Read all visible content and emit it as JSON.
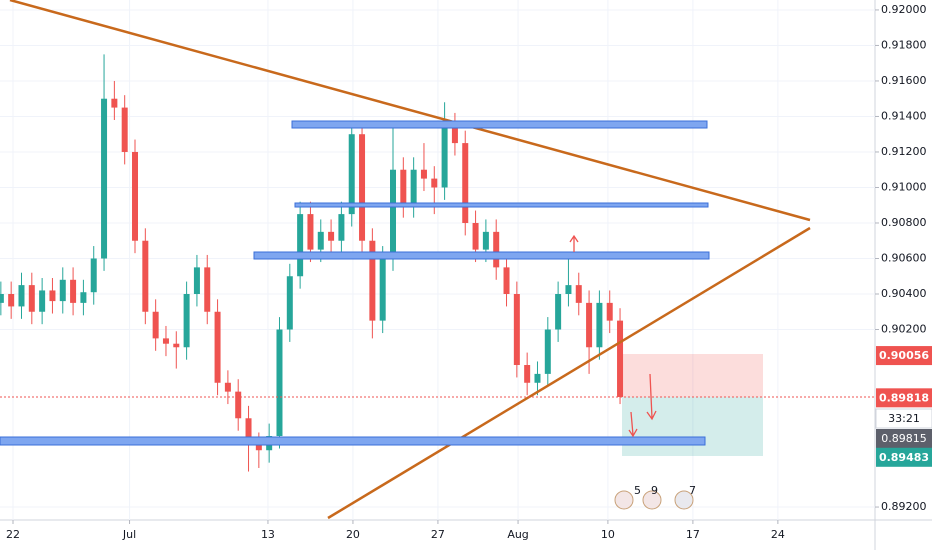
{
  "chart_data": {
    "type": "candlestick",
    "x": [
      -1,
      -0.15,
      0.7,
      1.55,
      2.4,
      3.25,
      4.1,
      4.95,
      5.8,
      6.65,
      7.5,
      8.35,
      9.2,
      10.05,
      10.9,
      11.75,
      12.6,
      13.45,
      14.3,
      15.15,
      16,
      16.85,
      17.7,
      18.55,
      19.4,
      20.25,
      21.1,
      21.95,
      22.8,
      23.65,
      24.5,
      25.35,
      26.2,
      27.05,
      27.9,
      28.75,
      29.6,
      30.45,
      31.3,
      32.15,
      33,
      33.85,
      34.7,
      35.55,
      36.4,
      37.25,
      38.1,
      38.95,
      39.8,
      40.65,
      41.5,
      42.35,
      43.2,
      44.05,
      44.9,
      45.75,
      46.6,
      47.45,
      48.3,
      49.15,
      50
    ],
    "open": [
      0.9035,
      0.904,
      0.9033,
      0.9045,
      0.903,
      0.9042,
      0.9036,
      0.9048,
      0.9035,
      0.9041,
      0.906,
      0.915,
      0.9145,
      0.912,
      0.907,
      0.903,
      0.9015,
      0.9012,
      0.901,
      0.904,
      0.9055,
      0.903,
      0.899,
      0.8985,
      0.897,
      0.8955,
      0.8952,
      0.896,
      0.902,
      0.905,
      0.9085,
      0.9065,
      0.9075,
      0.907,
      0.9085,
      0.913,
      0.907,
      0.9025,
      0.906,
      0.911,
      0.909,
      0.911,
      0.9105,
      0.91,
      0.9135,
      0.9125,
      0.908,
      0.9065,
      0.9075,
      0.9055,
      0.904,
      0.9,
      0.899,
      0.8995,
      0.902,
      0.904,
      0.9045,
      0.9035,
      0.901,
      0.9035,
      0.9025
    ],
    "high": [
      0.9047,
      0.9047,
      0.9052,
      0.9052,
      0.9049,
      0.9049,
      0.9055,
      0.9055,
      0.9048,
      0.9067,
      0.9175,
      0.916,
      0.9152,
      0.9127,
      0.9077,
      0.9037,
      0.9022,
      0.9019,
      0.9047,
      0.9062,
      0.9062,
      0.9037,
      0.8997,
      0.8992,
      0.8977,
      0.8962,
      0.8967,
      0.9027,
      0.9057,
      0.9092,
      0.9092,
      0.9082,
      0.9082,
      0.9092,
      0.9137,
      0.9137,
      0.9077,
      0.9067,
      0.9137,
      0.9117,
      0.9117,
      0.9125,
      0.9112,
      0.9148,
      0.9142,
      0.9132,
      0.9087,
      0.9082,
      0.9082,
      0.9062,
      0.9047,
      0.9007,
      0.9002,
      0.9027,
      0.9047,
      0.906,
      0.9052,
      0.9042,
      0.9042,
      0.9042,
      0.9032
    ],
    "low": [
      0.9028,
      0.9026,
      0.9026,
      0.9023,
      0.9023,
      0.9029,
      0.9029,
      0.9028,
      0.9028,
      0.9034,
      0.9053,
      0.9138,
      0.9113,
      0.9063,
      0.9023,
      0.9008,
      0.9005,
      0.8998,
      0.9003,
      0.9033,
      0.9023,
      0.8983,
      0.8978,
      0.8963,
      0.894,
      0.8942,
      0.8945,
      0.8953,
      0.9013,
      0.9043,
      0.9058,
      0.9058,
      0.9063,
      0.9063,
      0.9078,
      0.9063,
      0.9015,
      0.9018,
      0.9053,
      0.9083,
      0.9083,
      0.9098,
      0.9085,
      0.9093,
      0.9118,
      0.9073,
      0.9058,
      0.9058,
      0.9048,
      0.9033,
      0.8993,
      0.8983,
      0.8983,
      0.8988,
      0.9013,
      0.9033,
      0.9028,
      0.8995,
      0.9003,
      0.9018,
      0.8978
    ],
    "close": [
      0.904,
      0.9033,
      0.9045,
      0.903,
      0.9042,
      0.9036,
      0.9048,
      0.9035,
      0.9041,
      0.906,
      0.915,
      0.9145,
      0.912,
      0.907,
      0.903,
      0.9015,
      0.9012,
      0.901,
      0.904,
      0.9055,
      0.903,
      0.899,
      0.8985,
      0.897,
      0.8955,
      0.8952,
      0.896,
      0.902,
      0.905,
      0.9085,
      0.9065,
      0.9075,
      0.907,
      0.9085,
      0.913,
      0.907,
      0.9025,
      0.906,
      0.911,
      0.909,
      0.911,
      0.9105,
      0.91,
      0.9135,
      0.9125,
      0.908,
      0.9065,
      0.9075,
      0.9055,
      0.904,
      0.9,
      0.899,
      0.8995,
      0.902,
      0.904,
      0.9045,
      0.9035,
      0.901,
      0.9035,
      0.9025,
      0.8982
    ],
    "up_color": "#26a69a",
    "down_color": "#ef5350",
    "xlim": [
      -1.07,
      71.0
    ],
    "xticks": [
      {
        "value": 0,
        "label": "22"
      },
      {
        "value": 9.6,
        "label": "Jul"
      },
      {
        "value": 21,
        "label": "13"
      },
      {
        "value": 28,
        "label": "20"
      },
      {
        "value": 35,
        "label": "27"
      },
      {
        "value": 41.6,
        "label": "Aug"
      },
      {
        "value": 49,
        "label": "10"
      },
      {
        "value": 56,
        "label": "17"
      },
      {
        "value": 63,
        "label": "24"
      }
    ],
    "ylim": [
      0.89127,
      0.92056
    ],
    "yticks": [
      {
        "value": 0.92,
        "label": "0.92000"
      },
      {
        "value": 0.918,
        "label": "0.91800"
      },
      {
        "value": 0.916,
        "label": "0.91600"
      },
      {
        "value": 0.914,
        "label": "0.91400"
      },
      {
        "value": 0.912,
        "label": "0.91200"
      },
      {
        "value": 0.91,
        "label": "0.91000"
      },
      {
        "value": 0.908,
        "label": "0.90800"
      },
      {
        "value": 0.906,
        "label": "0.90600"
      },
      {
        "value": 0.904,
        "label": "0.90400"
      },
      {
        "value": 0.902,
        "label": "0.90200"
      },
      {
        "value": 0.892,
        "label": "0.89200"
      }
    ],
    "grid": true,
    "price_badges": [
      {
        "value": 0.90056,
        "label": "0.90056",
        "color": "#ef5350"
      },
      {
        "value": 0.89818,
        "label": "0.89818",
        "color": "#ef5350"
      },
      {
        "value": 0.89483,
        "label": "0.89483",
        "color": "#26a69a"
      }
    ],
    "countdown": "33:21",
    "last_badge": {
      "value": 0.89815,
      "label": "0.89815",
      "color": "#5d606b"
    },
    "events": [
      "5",
      "9",
      "7"
    ]
  }
}
